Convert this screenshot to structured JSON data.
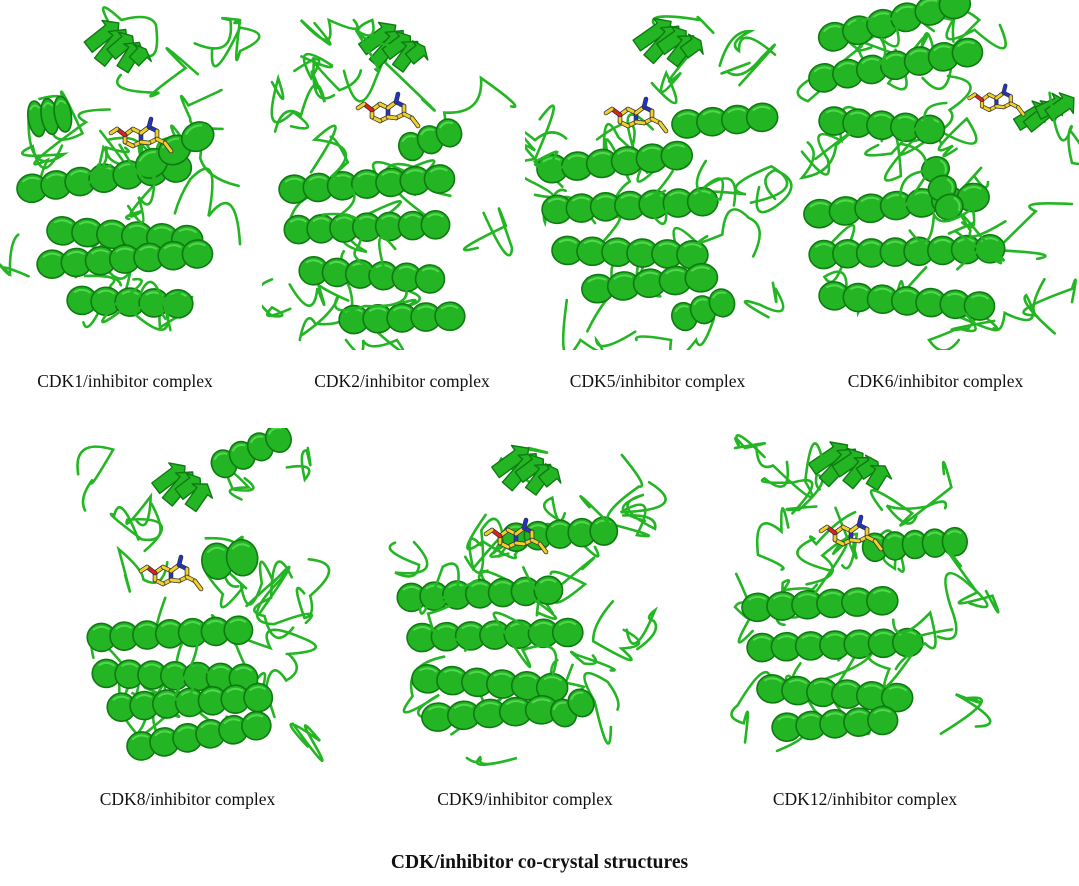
{
  "figure": {
    "title": "CDK/inhibitor co-crystal structures",
    "protein_color": "#23b523",
    "protein_dark": "#0f7a12",
    "protein_light": "#5ee05a",
    "ligand_carbon": "#f2d02a",
    "ligand_nitrogen": "#2233cc",
    "ligand_oxygen": "#e02020"
  },
  "panels": [
    {
      "id": "cdk1",
      "caption": "CDK1/inhibitor complex",
      "structure": "protein-kinase-ribbon"
    },
    {
      "id": "cdk2",
      "caption": "CDK2/inhibitor complex",
      "structure": "protein-kinase-ribbon"
    },
    {
      "id": "cdk5",
      "caption": "CDK5/inhibitor complex",
      "structure": "protein-kinase-ribbon"
    },
    {
      "id": "cdk6",
      "caption": "CDK6/inhibitor complex",
      "structure": "protein-kinase-ribbon"
    },
    {
      "id": "cdk8",
      "caption": "CDK8/inhibitor complex",
      "structure": "protein-kinase-ribbon"
    },
    {
      "id": "cdk9",
      "caption": "CDK9/inhibitor complex",
      "structure": "protein-kinase-ribbon"
    },
    {
      "id": "cdk12",
      "caption": "CDK12/inhibitor complex",
      "structure": "protein-kinase-ribbon"
    }
  ]
}
